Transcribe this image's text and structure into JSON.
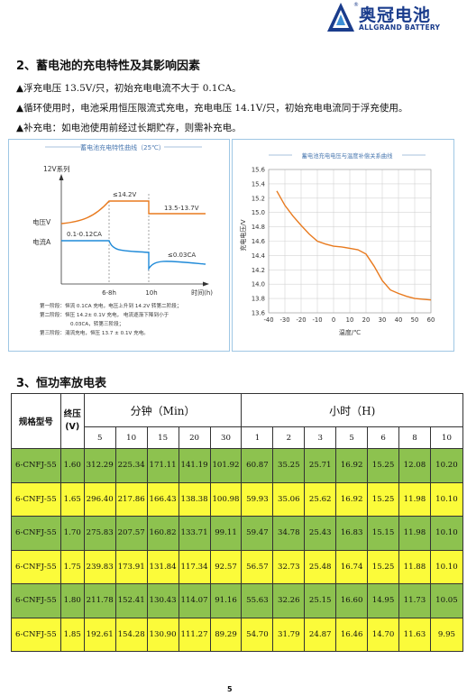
{
  "brand": {
    "name_cn": "奥冠电池",
    "name_en": "ALLGRAND BATTERY",
    "reg": "®"
  },
  "section2": {
    "title": "2、蓄电池的充电特性及其影响因素",
    "bullets": [
      "▲浮充电压 13.5V/只，初始充电电流不大于 0.1CA。",
      "▲循环使用时，电池采用恒压限流式充电，充电电压 14.1V/只，初始充电电流同于浮充使用。",
      "▲补充电：如电池使用前经过长期贮存，则需补充电。"
    ]
  },
  "left_chart": {
    "title": "蓄电池充电特性曲线（25℃）",
    "series_label": "12V系列",
    "y_label_voltage": "电压V",
    "y_label_current": "电流A",
    "ann_voltage_peak": "≤14.2V",
    "ann_float": "13.5-13.7V",
    "ann_init_current": "0.1-0.12CA",
    "ann_end_current": "≤0.03CA",
    "tick_1": "6-8h",
    "tick_2": "10h",
    "x_label": "时间(h)",
    "notes": [
      "第一阶段：恒流 0.1CA 充电，电压上升到 14.2V 转第二阶段；",
      "第二阶段：恒压 14.2± 0.1V 充电，  电流逐渐下降到小于",
      "0.03CA，转第三阶段；",
      "第三阶段：涓流充电，恒压 13.7 ± 0.1V 充电。"
    ],
    "colors": {
      "voltage": "#e87a1e",
      "current": "#1f8ad8"
    }
  },
  "chart_data": {
    "type": "line",
    "title": "蓄电池充电电压与温度补偿关系曲线",
    "xlabel": "温度/℃",
    "ylabel": "充电电压/V",
    "xlim": [
      -40,
      60
    ],
    "ylim": [
      13.6,
      15.6
    ],
    "x_ticks": [
      "-40",
      "-30",
      "-20",
      "-10",
      "0",
      "10",
      "20",
      "30",
      "40",
      "50",
      "60"
    ],
    "y_ticks": [
      "15.6",
      "15.4",
      "15.2",
      "15.0",
      "14.8",
      "14.6",
      "14.4",
      "14.2",
      "14.0",
      "13.8",
      "13.6"
    ],
    "grid": true,
    "series": [
      {
        "color": "#e87a1e",
        "points": [
          [
            -35,
            15.3
          ],
          [
            -30,
            15.1
          ],
          [
            -25,
            14.95
          ],
          [
            -20,
            14.82
          ],
          [
            -15,
            14.7
          ],
          [
            -10,
            14.6
          ],
          [
            -5,
            14.56
          ],
          [
            0,
            14.53
          ],
          [
            5,
            14.52
          ],
          [
            10,
            14.5
          ],
          [
            15,
            14.48
          ],
          [
            20,
            14.42
          ],
          [
            25,
            14.25
          ],
          [
            30,
            14.05
          ],
          [
            35,
            13.92
          ],
          [
            40,
            13.87
          ],
          [
            45,
            13.83
          ],
          [
            50,
            13.8
          ],
          [
            55,
            13.79
          ],
          [
            60,
            13.78
          ]
        ]
      }
    ]
  },
  "section3": {
    "title": "3、恒功率放电表",
    "header": {
      "model": "规格型号",
      "end_voltage": "终压",
      "end_voltage_unit": "(V)",
      "group_min": "分钟（Min）",
      "group_hour": "小时（H)",
      "minutes": [
        "5",
        "10",
        "15",
        "20",
        "30"
      ],
      "hours": [
        "1",
        "2",
        "3",
        "5",
        "6",
        "8",
        "10"
      ]
    },
    "rows": [
      {
        "model": "6-CNFJ-55",
        "v": "1.60",
        "vals": [
          "312.29",
          "225.34",
          "171.11",
          "141.19",
          "101.92",
          "60.87",
          "35.25",
          "25.71",
          "16.92",
          "15.25",
          "12.08",
          "10.20"
        ]
      },
      {
        "model": "6-CNFJ-55",
        "v": "1.65",
        "vals": [
          "296.40",
          "217.86",
          "166.43",
          "138.38",
          "100.98",
          "59.93",
          "35.06",
          "25.62",
          "16.92",
          "15.25",
          "11.98",
          "10.10"
        ]
      },
      {
        "model": "6-CNFJ-55",
        "v": "1.70",
        "vals": [
          "275.83",
          "207.57",
          "160.82",
          "133.71",
          "99.11",
          "59.47",
          "34.78",
          "25.43",
          "16.83",
          "15.15",
          "11.98",
          "10.10"
        ]
      },
      {
        "model": "6-CNFJ-55",
        "v": "1.75",
        "vals": [
          "239.83",
          "173.91",
          "131.84",
          "117.34",
          "92.57",
          "56.57",
          "32.73",
          "25.48",
          "16.74",
          "15.25",
          "11.88",
          "10.10"
        ]
      },
      {
        "model": "6-CNFJ-55",
        "v": "1.80",
        "vals": [
          "211.78",
          "152.41",
          "130.43",
          "114.07",
          "91.16",
          "55.63",
          "32.26",
          "25.15",
          "16.60",
          "14.95",
          "11.73",
          "10.05"
        ]
      },
      {
        "model": "6-CNFJ-55",
        "v": "1.85",
        "vals": [
          "192.61",
          "154.28",
          "130.90",
          "111.27",
          "89.29",
          "54.70",
          "31.79",
          "24.87",
          "16.46",
          "14.70",
          "11.63",
          "9.95"
        ]
      }
    ]
  },
  "page_number": "5"
}
